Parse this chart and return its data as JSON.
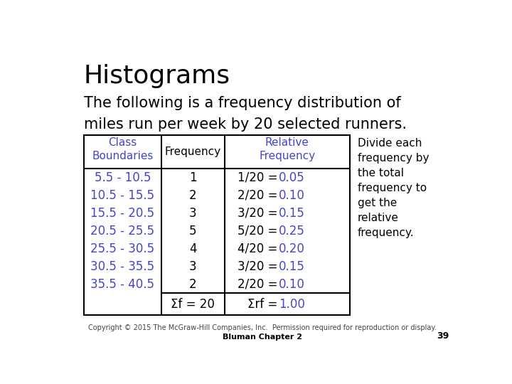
{
  "title": "Histograms",
  "subtitle_line1": "The following is a frequency distribution of",
  "subtitle_line2": "miles run per week by 20 selected runners.",
  "bg_outer": "#a0a0d0",
  "bg_inner": "#ffffff",
  "table_header_col0": "Class\nBoundaries",
  "table_header_col1": "Frequency",
  "table_header_col2": "Relative\nFrequency",
  "class_boundaries": [
    "5.5 - 10.5",
    "10.5 - 15.5",
    "15.5 - 20.5",
    "20.5 - 25.5",
    "25.5 - 30.5",
    "30.5 - 35.5",
    "35.5 - 40.5"
  ],
  "frequencies": [
    "1",
    "2",
    "3",
    "5",
    "4",
    "3",
    "2"
  ],
  "relative_freqs_prefix": [
    "1/20 = ",
    "2/20 = ",
    "3/20 = ",
    "5/20 = ",
    "4/20 = ",
    "3/20 = ",
    "2/20 = "
  ],
  "relative_freqs_suffix": [
    "0.05",
    "0.10",
    "0.15",
    "0.25",
    "0.20",
    "0.15",
    "0.10"
  ],
  "sum_freq": "Σf = 20",
  "sum_rf_prefix": "Σrf = ",
  "sum_rf_suffix": "1.00",
  "side_note": "Divide each\nfrequency by\nthe total\nfrequency to\nget the\nrelative\nfrequency.",
  "footer_line1": "Copyright © 2015 The McGraw-Hill Companies, Inc.  Permission required for reproduction or display.",
  "footer_line2": "Bluman Chapter 2",
  "page_number": "39",
  "blue_color": "#4444cc",
  "black_color": "#000000",
  "gray_color": "#444444",
  "title_fontsize": 26,
  "subtitle_fontsize": 15,
  "table_header_fontsize": 11,
  "table_data_fontsize": 12,
  "side_note_fontsize": 11,
  "footer_fontsize": 7
}
